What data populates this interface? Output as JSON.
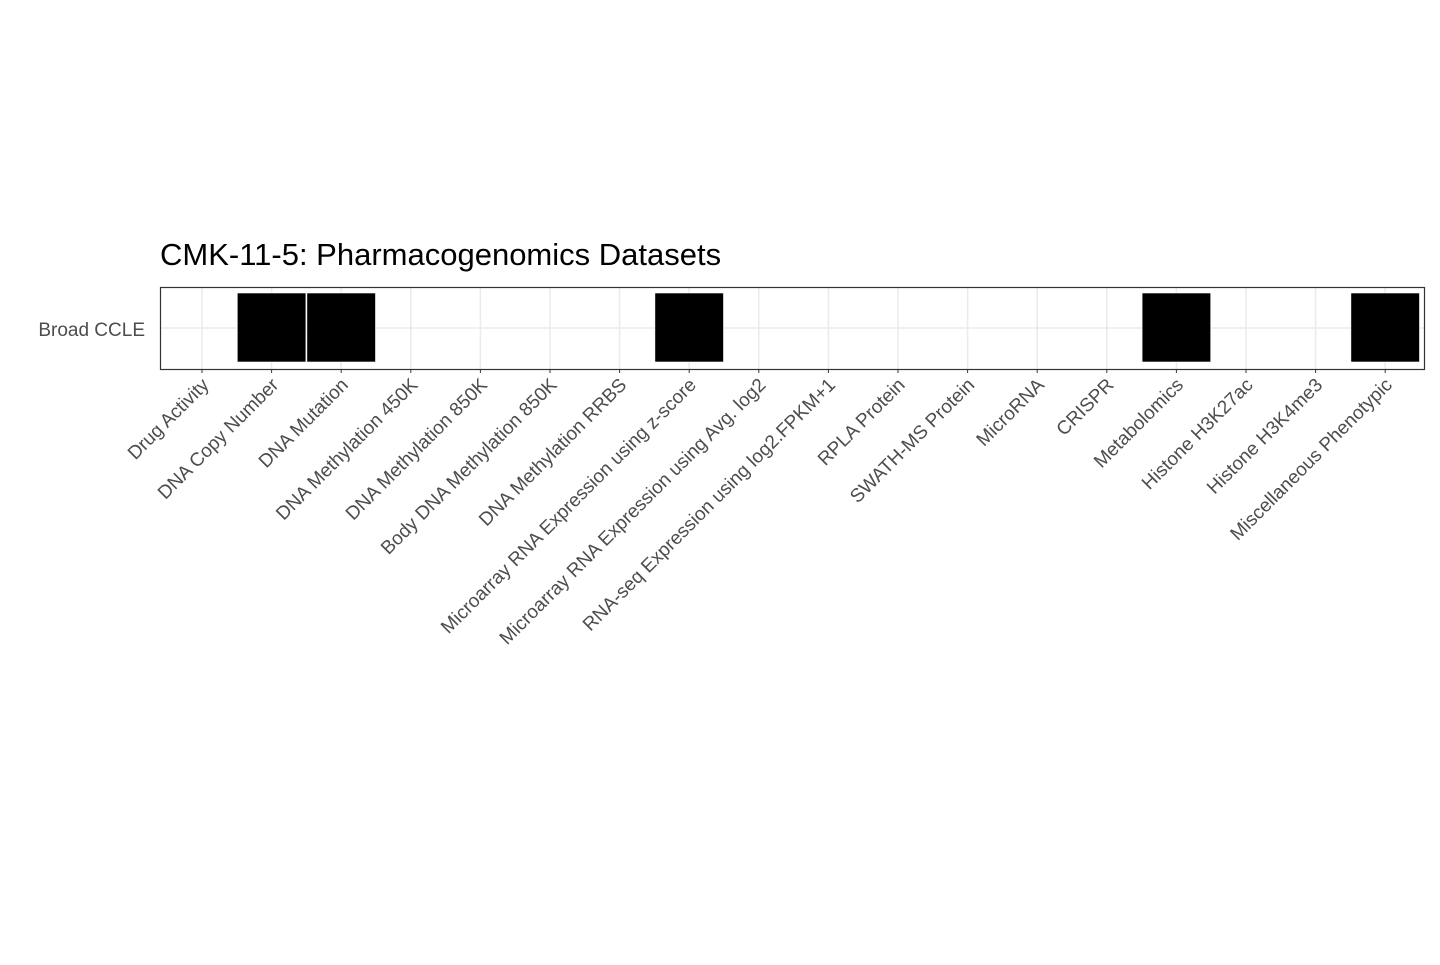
{
  "chart_data": {
    "type": "heatmap",
    "title": "CMK-11-5: Pharmacogenomics Datasets",
    "xlabel": "",
    "ylabel": "",
    "rows": [
      "Broad CCLE"
    ],
    "categories": [
      "Drug Activity",
      "DNA Copy Number",
      "DNA Mutation",
      "DNA Methylation 450K",
      "DNA Methylation 850K",
      "Body DNA Methylation 850K",
      "DNA Methylation RRBS",
      "Microarray RNA Expression using z-score",
      "Microarray RNA Expression using Avg. log2",
      "RNA-seq Expression using log2.FPKM+1",
      "RPLA Protein",
      "SWATH-MS Protein",
      "MicroRNA",
      "CRISPR",
      "Metabolomics",
      "Histone H3K27ac",
      "Histone H3K4me3",
      "Miscellaneous Phenotypic"
    ],
    "values": [
      [
        0,
        1,
        1,
        0,
        0,
        0,
        0,
        1,
        0,
        0,
        0,
        0,
        0,
        0,
        1,
        0,
        0,
        1
      ]
    ],
    "fill_color": "#000000",
    "grid": true,
    "legend": "none"
  }
}
